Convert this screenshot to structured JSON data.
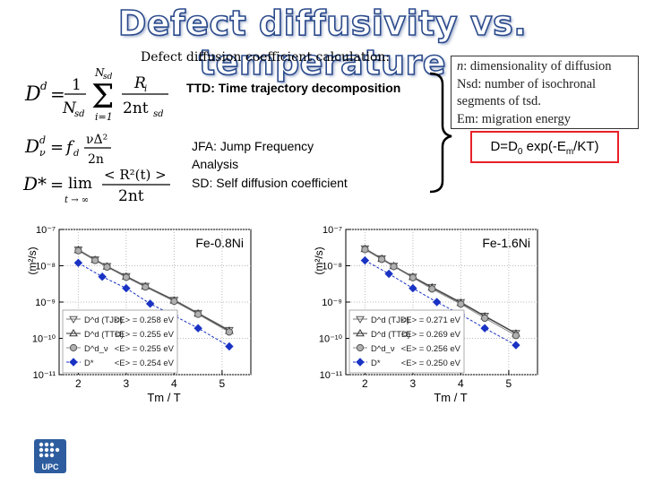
{
  "slide": {
    "title": "Defect diffusivity vs. temperature",
    "subtitle": "Defect diffusion coefficient calculation:",
    "notes": {
      "ttd": "TTD: Time trajectory decomposition",
      "jfa_line1": "JFA:  Jump Frequency",
      "jfa_line2": "Analysis",
      "sd": "SD:  Self diffusion coefficient"
    },
    "info": {
      "line1": "n: dimensionality of diffusion",
      "line2": "Nsd: number of isochronal",
      "line3": "segments of tsd.",
      "line4": "Em: migration energy"
    },
    "arrhenius": "D=D0 exp(-Em/KT)"
  },
  "equations": {
    "eq1": {
      "lhs": "D",
      "sup": "d",
      "sum_top": "N",
      "sum_top_sub": "sd",
      "sum_bottom": "i=1",
      "frac1_num": "1",
      "frac1_den": "N",
      "frac1_den_sub": "sd",
      "frac2_num": "R",
      "frac2_num_sub": "i",
      "frac2_den": "2nt",
      "frac2_den_sub": "sd"
    },
    "eq2": {
      "lhs": "D",
      "sup": "d",
      "sub": "ν",
      "rhs": "f",
      "rhs_sub": "d",
      "frac_num": "νΔ²",
      "frac_den": "2n"
    },
    "eq3": {
      "lhs": "D*",
      "lim": "lim",
      "lim_sub": "t → ∞",
      "frac_num": "< R²(t) >",
      "frac_den": "2nt"
    }
  },
  "colors": {
    "title_outline": "#2b4a8c",
    "accent_red": "#e8202a",
    "series_blue": "#1a33c4",
    "series_gray": "#888888",
    "series_dark": "#444444"
  },
  "chart_data": [
    {
      "type": "scatter",
      "title": "Fe-0.8Ni",
      "xlabel": "Tm / T",
      "ylabel": "(m²/s)",
      "xlim": [
        1.6,
        5.6
      ],
      "ylim_log10": [
        -11,
        -7
      ],
      "log_y": true,
      "x_ticks": [
        "2",
        "3",
        "4",
        "5"
      ],
      "y_ticks": [
        "10⁻⁷",
        "10⁻⁸",
        "10⁻⁹",
        "10⁻¹⁰",
        "10⁻¹¹"
      ],
      "legend_position": "bottom-left",
      "series": [
        {
          "name": "D^d (TJD)",
          "energy": "<E> = 0.258 eV",
          "marker": "triangle-down-open",
          "x": [
            2.0,
            2.35,
            2.6,
            3.0,
            3.4,
            4.0,
            4.5,
            5.15
          ],
          "y": [
            2.8e-08,
            1.5e-08,
            9.8e-09,
            5.2e-09,
            2.8e-09,
            1.15e-09,
            5e-10,
            1.7e-10
          ]
        },
        {
          "name": "D^d (TTD)",
          "energy": "<E> = 0.255 eV",
          "marker": "triangle-up-open",
          "x": [
            2.0,
            2.35,
            2.6,
            3.0,
            3.4,
            4.0,
            4.5,
            5.15
          ],
          "y": [
            2.7e-08,
            1.45e-08,
            9.5e-09,
            5e-09,
            2.7e-09,
            1.1e-09,
            4.8e-10,
            1.6e-10
          ]
        },
        {
          "name": "D^d_ν",
          "energy": "<E> = 0.255 eV",
          "marker": "circle-gray",
          "x": [
            2.0,
            2.35,
            2.6,
            3.0,
            3.4,
            4.0,
            4.5,
            5.15
          ],
          "y": [
            2.6e-08,
            1.4e-08,
            9.2e-09,
            4.8e-09,
            2.6e-09,
            1.05e-09,
            4.6e-10,
            1.5e-10
          ]
        },
        {
          "name": "D*",
          "energy": "<E> = 0.254 eV",
          "marker": "diamond-blue",
          "x": [
            2.0,
            2.5,
            3.0,
            3.5,
            4.0,
            4.5,
            5.15
          ],
          "y": [
            1.2e-08,
            5e-09,
            2.4e-09,
            9e-10,
            4.2e-10,
            1.9e-10,
            6e-11
          ]
        }
      ]
    },
    {
      "type": "scatter",
      "title": "Fe-1.6Ni",
      "xlabel": "Tm / T",
      "ylabel": "(m²/s)",
      "xlim": [
        1.6,
        5.6
      ],
      "ylim_log10": [
        -11,
        -7
      ],
      "log_y": true,
      "x_ticks": [
        "2",
        "3",
        "4",
        "5"
      ],
      "y_ticks": [
        "10⁻⁷",
        "10⁻⁸",
        "10⁻⁹",
        "10⁻¹⁰",
        "10⁻¹¹"
      ],
      "legend_position": "bottom-left",
      "series": [
        {
          "name": "D^d (TJD)",
          "energy": "<E> = 0.271 eV",
          "marker": "triangle-down-open",
          "x": [
            2.0,
            2.35,
            2.6,
            3.0,
            3.4,
            4.0,
            4.5,
            5.15
          ],
          "y": [
            3e-08,
            1.6e-08,
            1e-08,
            5e-09,
            2.6e-09,
            1e-09,
            4.2e-10,
            1.4e-10
          ]
        },
        {
          "name": "D^d (TTD)",
          "energy": "<E> = 0.269 eV",
          "marker": "triangle-up-open",
          "x": [
            2.0,
            2.35,
            2.6,
            3.0,
            3.4,
            4.0,
            4.5,
            5.15
          ],
          "y": [
            2.9e-08,
            1.55e-08,
            9.8e-09,
            4.9e-09,
            2.5e-09,
            9.5e-10,
            4e-10,
            1.35e-10
          ]
        },
        {
          "name": "D^d_ν",
          "energy": "<E> = 0.256 eV",
          "marker": "circle-gray",
          "x": [
            2.0,
            2.35,
            2.6,
            3.0,
            3.4,
            4.0,
            4.5,
            5.15
          ],
          "y": [
            2.8e-08,
            1.5e-08,
            9.5e-09,
            4.7e-09,
            2.3e-09,
            8.8e-10,
            3.6e-10,
            1.2e-10
          ]
        },
        {
          "name": "D*",
          "energy": "<E> = 0.250 eV",
          "marker": "diamond-blue",
          "x": [
            2.0,
            2.5,
            3.0,
            3.5,
            4.0,
            4.5,
            5.15
          ],
          "y": [
            1.4e-08,
            6e-09,
            2.4e-09,
            1e-09,
            4.5e-10,
            1.9e-10,
            6.5e-11
          ]
        }
      ]
    }
  ]
}
